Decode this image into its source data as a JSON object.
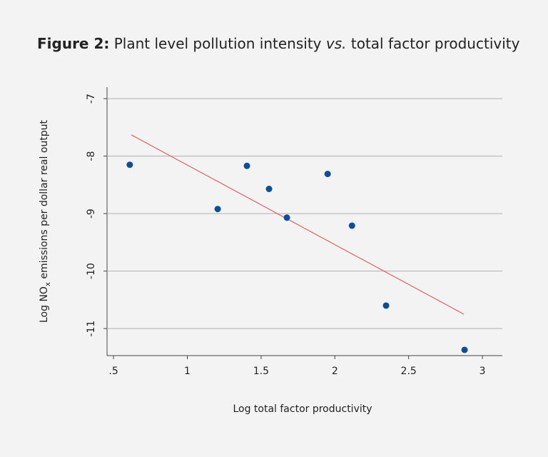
{
  "chart_data": {
    "type": "scatter",
    "title": {
      "label": "Figure 2:",
      "text_before": "Plant level pollution intensity",
      "emphasis": "vs.",
      "text_after": "total factor productivity"
    },
    "x_label": "Log total factor productivity",
    "y_label": {
      "text_before": "Log NO",
      "subscript": "x",
      "text_after": "emissions per dollar real output"
    },
    "x": [
      0.61,
      1.206,
      1.404,
      1.554,
      1.675,
      1.951,
      2.116,
      2.347,
      2.879
    ],
    "values": [
      -8.15,
      -8.92,
      -8.17,
      -8.57,
      -9.07,
      -8.31,
      -9.21,
      -10.6,
      -11.37
    ],
    "color": "#0b4f9c",
    "fit": {
      "x": [
        0.62,
        2.874
      ],
      "y": [
        -7.63,
        -10.75
      ],
      "color": "#e8474a"
    },
    "xlim": [
      0.456,
      3.135
    ],
    "ylim": [
      -11.47,
      -6.8
    ],
    "xticks": [
      {
        "value": 0.5,
        "label": ".5"
      },
      1,
      1.5,
      2,
      2.5,
      3
    ],
    "yticks": [
      -11,
      -10,
      -9,
      -8,
      -7
    ],
    "grid": true
  }
}
